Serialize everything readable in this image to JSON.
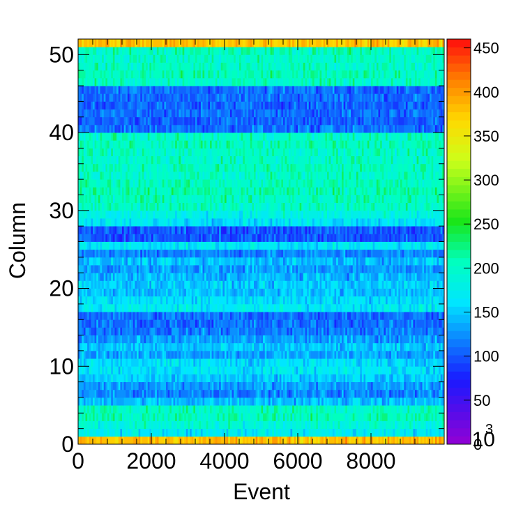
{
  "chart_data": {
    "type": "heatmap",
    "title": "",
    "xlabel": "Event",
    "ylabel": "Column",
    "xlim": [
      0,
      10000
    ],
    "ylim": [
      0,
      52
    ],
    "x_ticks": [
      0,
      2000,
      4000,
      6000,
      8000
    ],
    "x_tick_labels": [
      "0",
      "2000",
      "4000",
      "6000",
      "8000"
    ],
    "y_ticks": [
      0,
      10,
      20,
      30,
      40,
      50
    ],
    "y_tick_labels": [
      "0",
      "10",
      "20",
      "30",
      "40",
      "50"
    ],
    "z_range": [
      0,
      460
    ],
    "z_ticks": [
      0,
      50,
      100,
      150,
      200,
      250,
      300,
      350,
      400,
      450
    ],
    "z_tick_labels": [
      "0",
      "50",
      "100",
      "150",
      "200",
      "250",
      "300",
      "350",
      "400",
      "450"
    ],
    "z_exponent_label": "10",
    "z_exponent_power": "3",
    "palette": "rainbow",
    "palette_levels": 50,
    "x_bin_width": 50,
    "column_means": [
      380,
      170,
      190,
      205,
      200,
      145,
      120,
      130,
      150,
      165,
      160,
      135,
      145,
      130,
      115,
      110,
      110,
      170,
      160,
      145,
      150,
      140,
      130,
      145,
      120,
      165,
      100,
      100,
      165,
      180,
      200,
      205,
      210,
      205,
      200,
      205,
      200,
      200,
      205,
      200,
      110,
      105,
      110,
      105,
      110,
      110,
      200,
      205,
      200,
      200,
      205,
      380
    ],
    "column_spread": 14,
    "grid": false
  }
}
